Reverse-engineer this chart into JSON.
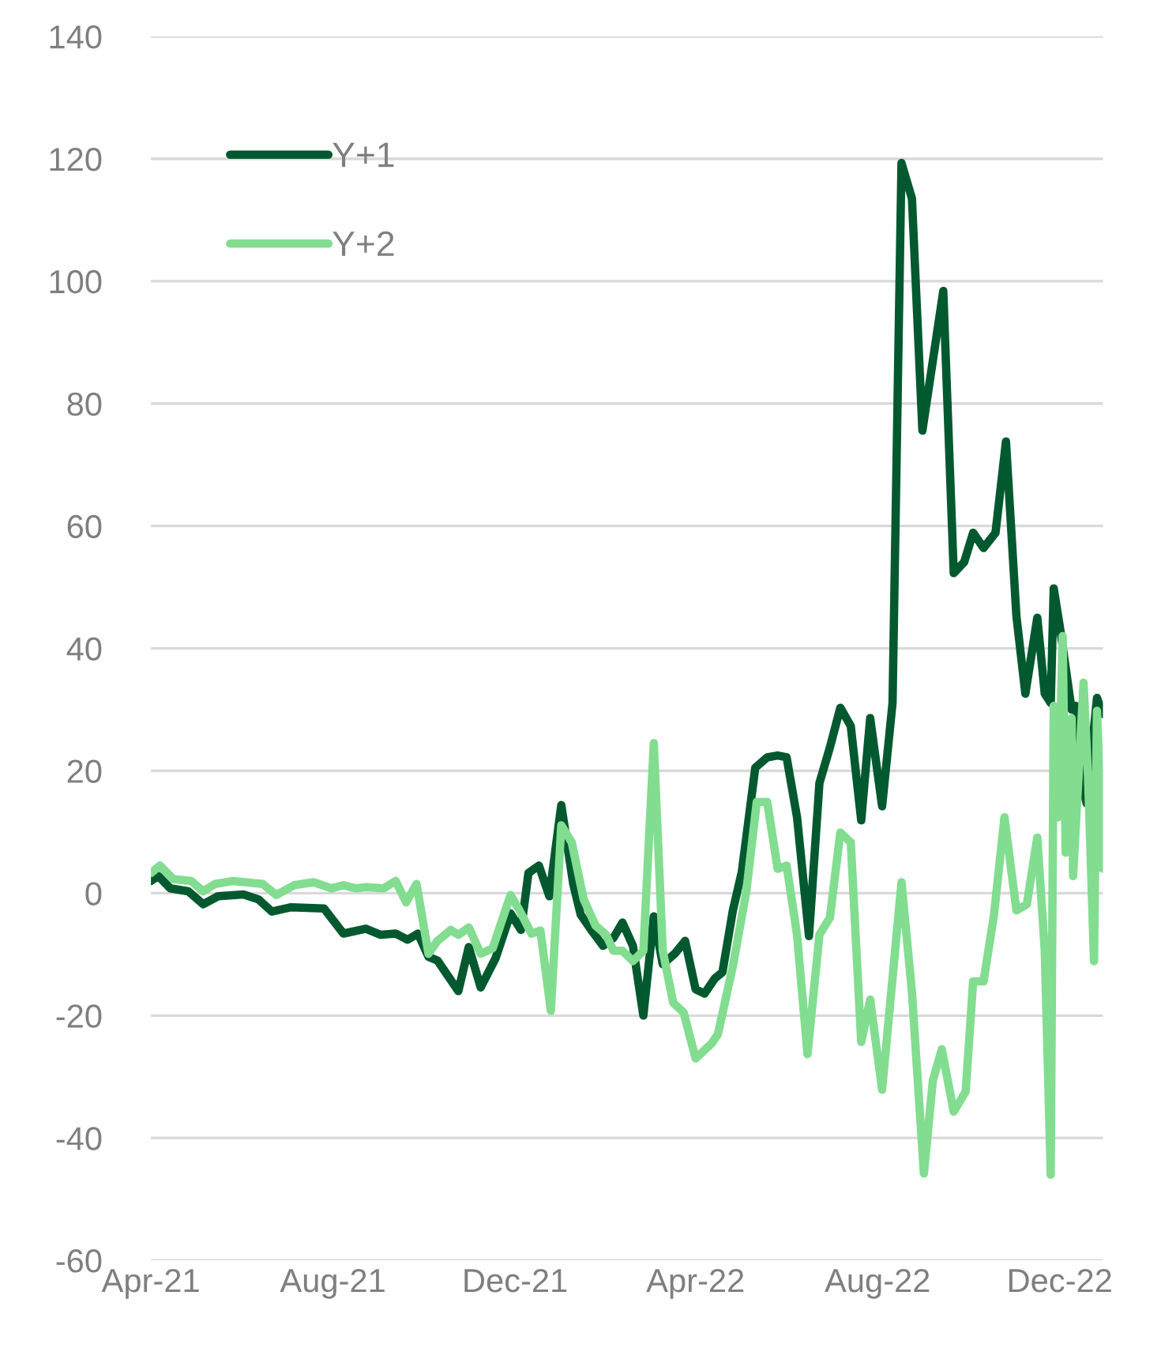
{
  "chart_data": {
    "type": "line",
    "xlim": [
      "2021-04-01",
      "2022-12-30"
    ],
    "xticks": [
      {
        "value": "2021-04-01",
        "label": "Apr-21"
      },
      {
        "value": "2021-08-01",
        "label": "Aug-21"
      },
      {
        "value": "2021-12-01",
        "label": "Dec-21"
      },
      {
        "value": "2022-04-01",
        "label": "Apr-22"
      },
      {
        "value": "2022-08-01",
        "label": "Aug-22"
      },
      {
        "value": "2022-12-01",
        "label": "Dec-22"
      }
    ],
    "ylim": [
      -60,
      140
    ],
    "yticks": [
      -60,
      -40,
      -20,
      0,
      20,
      40,
      60,
      80,
      100,
      120,
      140
    ],
    "grid": "y",
    "legend": "top left",
    "line_style": "solid",
    "series": [
      {
        "name": "Y+1",
        "color": "#03592f",
        "x": [
          "2021-04-01",
          "2021-04-06",
          "2021-04-14",
          "2021-04-26",
          "2021-05-06",
          "2021-05-16",
          "2021-06-02",
          "2021-06-12",
          "2021-06-21",
          "2021-07-04",
          "2021-07-26",
          "2021-08-08",
          "2021-08-23",
          "2021-09-02",
          "2021-09-12",
          "2021-09-20",
          "2021-09-27",
          "2021-10-04",
          "2021-10-10",
          "2021-10-24",
          "2021-10-31",
          "2021-11-08",
          "2021-11-18",
          "2021-11-28",
          "2021-12-05",
          "2021-12-10",
          "2021-12-17",
          "2021-12-24",
          "2022-01-01",
          "2022-01-09",
          "2022-01-14",
          "2022-01-21",
          "2022-01-29",
          "2022-02-05",
          "2022-02-11",
          "2022-02-18",
          "2022-02-25",
          "2022-03-04",
          "2022-03-10",
          "2022-03-18",
          "2022-03-25",
          "2022-04-01",
          "2022-04-07",
          "2022-04-14",
          "2022-04-19",
          "2022-04-26",
          "2022-05-02",
          "2022-05-11",
          "2022-05-19",
          "2022-05-26",
          "2022-06-01",
          "2022-06-08",
          "2022-06-16",
          "2022-06-23",
          "2022-06-30",
          "2022-07-07",
          "2022-07-14",
          "2022-07-21",
          "2022-07-27",
          "2022-08-04",
          "2022-08-11",
          "2022-08-17",
          "2022-08-24",
          "2022-08-31",
          "2022-09-14",
          "2022-09-21",
          "2022-09-28",
          "2022-10-04",
          "2022-10-11",
          "2022-10-19",
          "2022-10-26",
          "2022-11-02",
          "2022-11-08",
          "2022-11-16",
          "2022-11-21",
          "2022-11-25",
          "2022-11-27",
          "2022-12-01",
          "2022-12-05",
          "2022-12-09",
          "2022-12-12",
          "2022-12-15",
          "2022-12-19",
          "2022-12-26",
          "2022-12-30"
        ],
        "values": [
          2,
          2.8,
          0.8,
          0.3,
          -1.8,
          -0.5,
          -0.2,
          -1,
          -3,
          -2.3,
          -2.5,
          -6.6,
          -5.8,
          -6.8,
          -6.6,
          -7.6,
          -6.6,
          -10.4,
          -11,
          -16,
          -8.8,
          -15.4,
          -10.6,
          -3.3,
          -6,
          3.3,
          4.5,
          -0.5,
          14.4,
          1.5,
          -3.5,
          -6,
          -8.6,
          -7.3,
          -4.8,
          -8.6,
          -20,
          -3.8,
          -11.6,
          -9.9,
          -7.8,
          -15.7,
          -16.4,
          -13.9,
          -12.9,
          -2.8,
          3.5,
          20.5,
          22.2,
          22.5,
          22.2,
          12.4,
          -7,
          18,
          23.8,
          30.3,
          27.3,
          11.9,
          28.6,
          14.2,
          31.1,
          119.3,
          113.5,
          75.6,
          98.4,
          52.3,
          54.1,
          58.9,
          56.4,
          58.9,
          73.8,
          45.3,
          32.6,
          45,
          32.6,
          31.1,
          49.8,
          43.7,
          null,
          30,
          30.6,
          19.2,
          14.7,
          31.9,
          29.3
        ]
      },
      {
        "name": "Y+2",
        "color": "#82dd90",
        "x": [
          "2021-04-01",
          "2021-04-07",
          "2021-04-16",
          "2021-04-28",
          "2021-05-06",
          "2021-05-14",
          "2021-05-26",
          "2021-06-15",
          "2021-06-24",
          "2021-07-06",
          "2021-07-19",
          "2021-07-31",
          "2021-08-08",
          "2021-08-16",
          "2021-08-23",
          "2021-09-04",
          "2021-09-12",
          "2021-09-19",
          "2021-09-26",
          "2021-10-04",
          "2021-10-10",
          "2021-10-19",
          "2021-10-24",
          "2021-10-31",
          "2021-11-08",
          "2021-11-16",
          "2021-11-28",
          "2021-12-04",
          "2021-12-12",
          "2021-12-18",
          "2021-12-25",
          "2022-01-01",
          "2022-01-08",
          "2022-01-16",
          "2022-01-24",
          "2022-01-31",
          "2022-02-05",
          "2022-02-11",
          "2022-02-18",
          "2022-02-25",
          "2022-03-04",
          "2022-03-10",
          "2022-03-17",
          "2022-03-24",
          "2022-04-01",
          "2022-04-12",
          "2022-04-16",
          "2022-04-26",
          "2022-05-05",
          "2022-05-12",
          "2022-05-19",
          "2022-05-26",
          "2022-06-01",
          "2022-06-08",
          "2022-06-15",
          "2022-06-23",
          "2022-06-30",
          "2022-07-07",
          "2022-07-14",
          "2022-07-21",
          "2022-07-27",
          "2022-08-04",
          "2022-08-17",
          "2022-08-24",
          "2022-09-01",
          "2022-09-07",
          "2022-09-13",
          "2022-09-21",
          "2022-09-29",
          "2022-10-04",
          "2022-10-11",
          "2022-10-18",
          "2022-10-25",
          "2022-11-02",
          "2022-11-09",
          "2022-11-16",
          "2022-11-21",
          "2022-11-25",
          "2022-11-27",
          "2022-11-30",
          "2022-12-03",
          "2022-12-05",
          "2022-12-09",
          "2022-12-10",
          "2022-12-17",
          "2022-12-20",
          "2022-12-24",
          "2022-12-26",
          "2022-12-30"
        ],
        "values": [
          3.3,
          4.5,
          2.3,
          2,
          0.3,
          1.5,
          2,
          1.5,
          -0.3,
          1.3,
          1.8,
          0.8,
          1.3,
          0.8,
          1,
          0.8,
          2,
          -1.5,
          1.5,
          -9.9,
          -7.8,
          -6,
          -6.8,
          -5.6,
          -9.9,
          -9,
          -0.3,
          -2.8,
          -6.6,
          -6.1,
          -19.2,
          11.1,
          8.3,
          -1,
          -5.3,
          -6.8,
          -9.4,
          -9.4,
          -11.1,
          -9.4,
          24.5,
          -9.4,
          -17.9,
          -19.5,
          -27,
          -24.5,
          -23,
          -11.9,
          0.3,
          14.9,
          14.9,
          4,
          4.5,
          -6.8,
          -26.3,
          -6.8,
          -4,
          9.9,
          8.3,
          -24.3,
          -17.4,
          -32.1,
          1.8,
          -16.2,
          -45.8,
          -30.6,
          -25.5,
          -35.7,
          -32.4,
          -14.4,
          -14.4,
          -3.5,
          12.4,
          -2.8,
          -1.8,
          9.1,
          -9.4,
          -46,
          30.6,
          12.4,
          42,
          6.6,
          28.6,
          2.8,
          34.4,
          19.2,
          -11.1,
          29.8,
          4
        ]
      }
    ]
  }
}
